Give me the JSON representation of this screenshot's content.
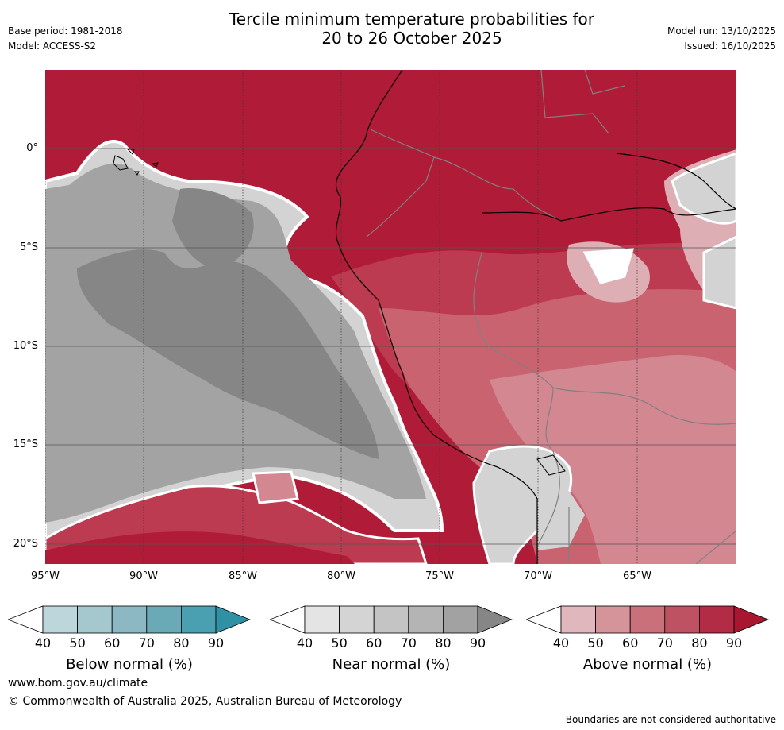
{
  "title": {
    "line1": "Tercile minimum temperature probabilities for",
    "line2": "20 to 26 October 2025"
  },
  "meta": {
    "base_period": "Base period: 1981-2018",
    "model": "Model: ACCESS-S2",
    "model_run": "Model run: 13/10/2025",
    "issued": "Issued: 16/10/2025"
  },
  "map": {
    "lat_labels": [
      "0°",
      "5°S",
      "10°S",
      "15°S",
      "20°S"
    ],
    "lon_labels": [
      "95°W",
      "90°W",
      "85°W",
      "80°W",
      "75°W",
      "70°W",
      "65°W"
    ],
    "colors": {
      "ocean_grey_light": "#d3d3d3",
      "ocean_grey_mid": "#a3a3a3",
      "ocean_grey_dark": "#868686",
      "red_90": "#b01c37",
      "red_80": "#bc3b51",
      "red_70": "#c9636f",
      "red_60": "#d38790",
      "red_50": "#ddaeb4",
      "coastline": "#000000",
      "borders": "#808080"
    }
  },
  "legends": [
    {
      "name": "Below normal (%)",
      "ticks": [
        "40",
        "50",
        "60",
        "70",
        "80",
        "90"
      ],
      "colors": [
        "#ffffff",
        "#bcd6dc",
        "#a5c8cf",
        "#8bb8c3",
        "#6aaab6",
        "#4a9fb0",
        "#3090a4"
      ]
    },
    {
      "name": "Near normal (%)",
      "ticks": [
        "40",
        "50",
        "60",
        "70",
        "80",
        "90"
      ],
      "colors": [
        "#ffffff",
        "#e4e4e4",
        "#d4d4d4",
        "#c4c4c4",
        "#b4b4b4",
        "#a2a2a2",
        "#868686"
      ]
    },
    {
      "name": "Above normal (%)",
      "ticks": [
        "40",
        "50",
        "60",
        "70",
        "80",
        "90"
      ],
      "colors": [
        "#ffffff",
        "#dfb7bc",
        "#d4949a",
        "#c9707a",
        "#bf5262",
        "#b32c45",
        "#a8162f"
      ]
    }
  ],
  "footer": {
    "website": "www.bom.gov.au/climate",
    "copyright": "© Commonwealth of Australia 2025, Australian Bureau of Meteorology",
    "disclaimer": "Boundaries are not considered authoritative"
  }
}
